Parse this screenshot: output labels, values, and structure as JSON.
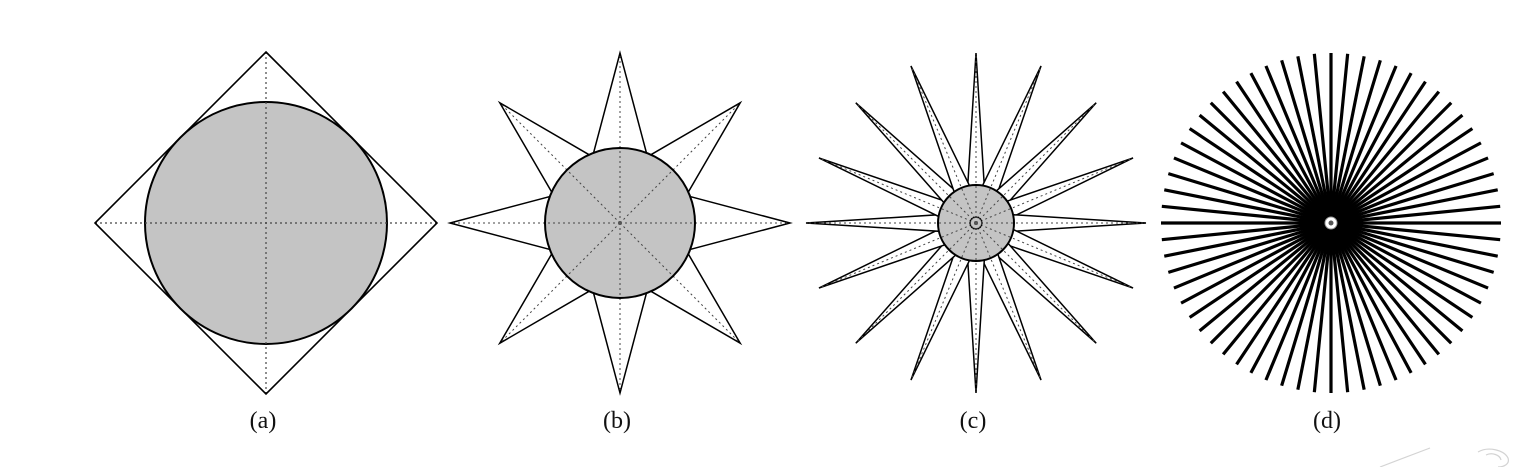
{
  "figure": {
    "panels": [
      {
        "id": "a",
        "label": "(a)",
        "points": 4,
        "shape": "diamond with inscribed circle"
      },
      {
        "id": "b",
        "label": "(b)",
        "points": 8,
        "shape": "star with circle"
      },
      {
        "id": "c",
        "label": "(c)",
        "points": 16,
        "shape": "star with circle"
      },
      {
        "id": "d",
        "label": "(d)",
        "points": 64,
        "shape": "radial lines"
      }
    ],
    "colors": {
      "stroke": "#000000",
      "fill": "#c4c4c4",
      "background": "#ffffff",
      "guide": "#444444"
    }
  }
}
